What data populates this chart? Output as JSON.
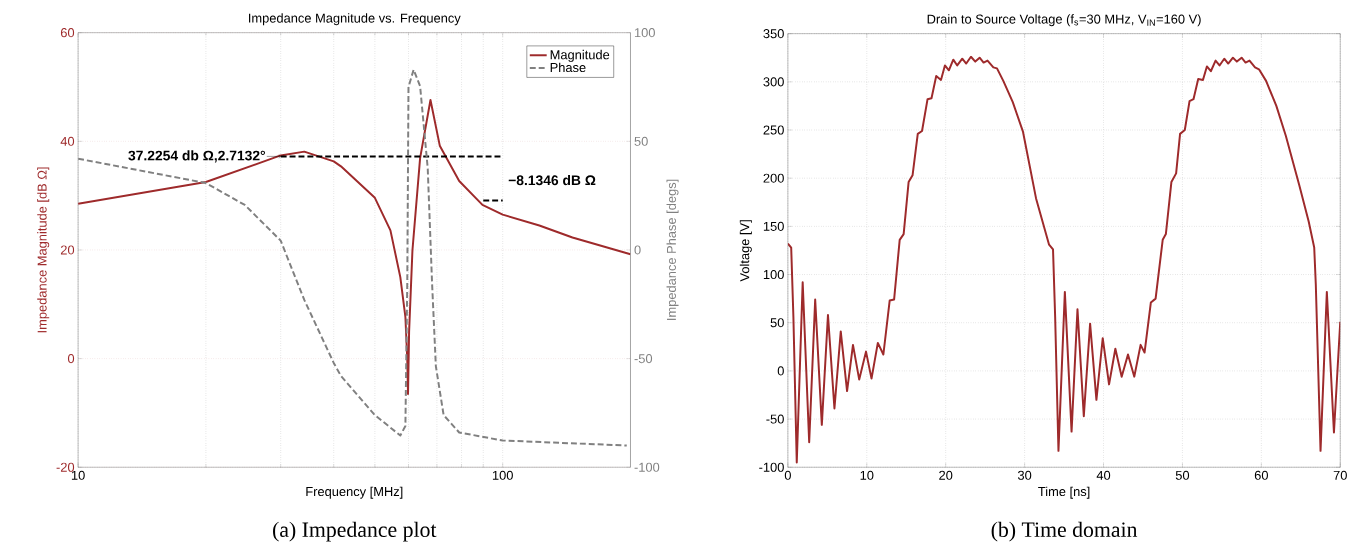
{
  "chart_data": [
    {
      "type": "line",
      "title": "Impedance Magnitude vs. Frequency",
      "xlabel": "Frequency [MHz]",
      "ylabel": "Impedance Magnitude [dB Ω]",
      "y2label": "Impedance Phase [degs]",
      "log": "x",
      "xlim": [
        10,
        200
      ],
      "xticks": [
        10,
        100
      ],
      "ylim": [
        -20,
        60
      ],
      "yticks": [
        -20,
        0,
        20,
        40,
        60
      ],
      "y2lim": [
        -100,
        100
      ],
      "y2ticks": [
        -100,
        -50,
        0,
        50,
        100
      ],
      "grid": true,
      "legend": "top right",
      "series": [
        {
          "name": "Magnitude",
          "color": "#9e2a2b",
          "line_style": "solid",
          "x": [
            10,
            20,
            30,
            34.1,
            40,
            41.6,
            50,
            54.4,
            57.4,
            59,
            59.6,
            59.85,
            60.2,
            61.3,
            63.9,
            67.6,
            71.1,
            79,
            89.6,
            100,
            122,
            146,
            200
          ],
          "values": [
            28.5,
            32.5,
            37.4,
            38.1,
            36.3,
            35.4,
            29.6,
            23.6,
            15.0,
            7.7,
            0,
            -6.5,
            5,
            19.9,
            36.9,
            47.6,
            39.2,
            32.7,
            28.3,
            26.5,
            24.5,
            22.3,
            19.2
          ]
        },
        {
          "name": "Phase",
          "color": "#808080",
          "line_style": "dashed",
          "axis": "y2",
          "x": [
            10,
            20,
            24.7,
            30,
            34.1,
            40,
            41.6,
            50,
            57.4,
            59,
            59.6,
            60,
            61.7,
            63.9,
            66.6,
            68.2,
            69.6,
            72.6,
            79,
            100,
            196
          ],
          "values": [
            42,
            30.8,
            20.7,
            4.3,
            -23,
            -52,
            -58,
            -76,
            -85.4,
            -81,
            -15.7,
            75,
            83,
            75.4,
            37.6,
            -15.7,
            -53.5,
            -76,
            -84,
            -87.7,
            -90
          ]
        },
        {
          "color": "#000000",
          "line_style": "dashed",
          "x": [
            30,
            100
          ],
          "values": [
            37.2254,
            37.2254
          ]
        },
        {
          "color": "#000000",
          "line_style": "dashed",
          "x": [
            90,
            100
          ],
          "values": [
            29.0908,
            29.0908
          ]
        }
      ],
      "annotations": [
        {
          "text": "37.2254 db Ω,2.7132°",
          "x": 30,
          "y": 37.2254
        },
        {
          "text": "−8.1346 dB Ω",
          "x": 100,
          "y": 29.0908
        },
        "(a) Impedance plot"
      ]
    },
    {
      "type": "line",
      "title": "Drain to Source Voltage (f$_{s}$=30 MHz, V$_{IN}$=160 V)",
      "xlabel": "Time [ns]",
      "ylabel": "Voltage [V]",
      "xlim": [
        0,
        70
      ],
      "xticks": [
        0,
        10,
        20,
        30,
        40,
        50,
        60,
        70
      ],
      "ylim": [
        -100,
        350
      ],
      "yticks": [
        -100,
        -50,
        0,
        50,
        100,
        150,
        200,
        250,
        300,
        350
      ],
      "grid": true,
      "series": [
        {
          "color": "#9e2a2b",
          "x": [
            0,
            0.42,
            0.7,
            1.125,
            1.875,
            2.7,
            3.46,
            4.3,
            5.08,
            5.9,
            6.7,
            7.5,
            8.25,
            9.04,
            9.9,
            10.6,
            11.4,
            12.1,
            12.9,
            13.46,
            14.17,
            14.67,
            15.3,
            15.8,
            16.46,
            17,
            17.7,
            18.2,
            18.8,
            19.4,
            19.9,
            20.4,
            20.96,
            21.46,
            22.1,
            22.6,
            23.2,
            23.75,
            24.3,
            24.8,
            25.3,
            26.04,
            26.5,
            27.3,
            28.5,
            29.8,
            31.45,
            33.1,
            33.6,
            33.87,
            34.29,
            35.1,
            35.95,
            36.7,
            37.5,
            38.3,
            39.1,
            39.9,
            40.7,
            41.5,
            42.3,
            43.1,
            43.9,
            44.7,
            45.2,
            46.0,
            46.6,
            47.5,
            47.9,
            48.6,
            49.2,
            49.7,
            50.3,
            50.9,
            51.4,
            52.0,
            52.6,
            53.1,
            53.6,
            54.2,
            54.7,
            55.3,
            55.8,
            56.4,
            56.9,
            57.5,
            58.0,
            58.5,
            59.2,
            59.7,
            60.6,
            61.9,
            63.1,
            64.8,
            66.0,
            66.7,
            66.9,
            67.5,
            68.3,
            69.2,
            70
          ],
          "values": [
            132,
            128,
            56,
            -95,
            92,
            -74,
            74,
            -56,
            58,
            -39,
            41,
            -21,
            27,
            -9,
            20,
            -8,
            29,
            17,
            73,
            74,
            136,
            142,
            196,
            203,
            246,
            249,
            282,
            283,
            306,
            302,
            317,
            312,
            323,
            317,
            324,
            319,
            326,
            321,
            325,
            320,
            322,
            315,
            314,
            301,
            279,
            248,
            179,
            131,
            126,
            56,
            -83,
            82,
            -63,
            64,
            -47,
            49,
            -30,
            34,
            -14,
            23,
            -6,
            17,
            -6,
            27,
            19,
            71,
            75,
            136,
            142,
            196,
            205,
            246,
            250,
            280,
            282,
            303,
            302,
            316,
            311,
            322,
            317,
            324,
            319,
            325,
            321,
            325,
            320,
            322,
            315,
            313,
            301,
            275,
            244,
            193,
            155,
            128,
            90,
            -83,
            82,
            -64,
            51
          ]
        }
      ],
      "annotations": [
        "(b) Time domain"
      ]
    }
  ]
}
